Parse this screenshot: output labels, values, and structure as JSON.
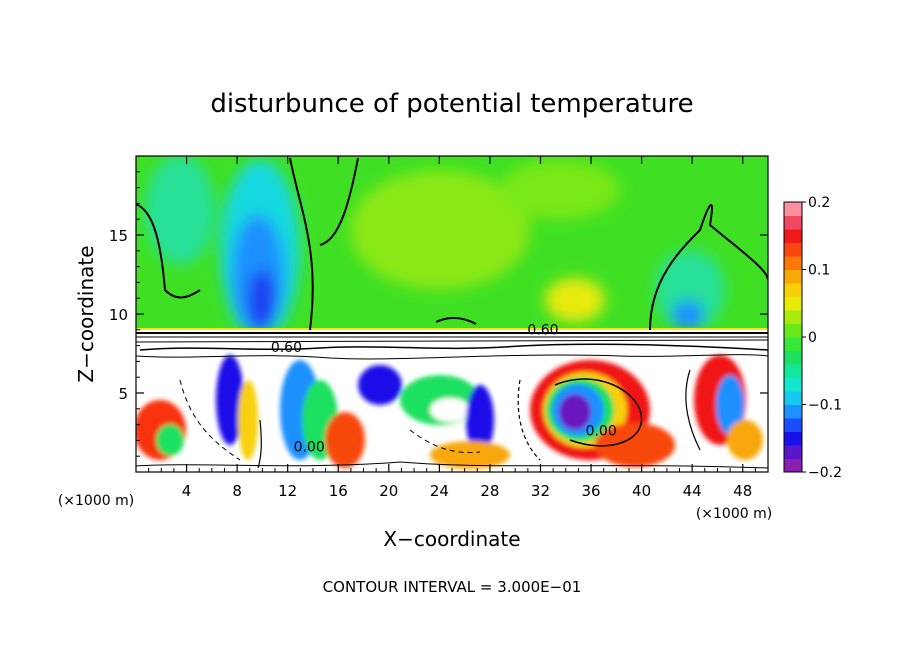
{
  "chart_data": {
    "type": "heatmap",
    "title": "disturbunce of potential temperature",
    "xlabel": "X−coordinate",
    "ylabel": "Z−coordinate",
    "x_unit_left": "(×1000 m)",
    "x_unit_right": "(×1000 m)",
    "footnote": "CONTOUR INTERVAL = 3.000E−01",
    "xlim": [
      0,
      50
    ],
    "ylim": [
      0,
      20
    ],
    "x_ticks": [
      4,
      8,
      12,
      16,
      20,
      24,
      28,
      32,
      36,
      40,
      44,
      48
    ],
    "x_tick_labels": [
      "4",
      "8",
      "12",
      "16",
      "20",
      "24",
      "28",
      "32",
      "36",
      "40",
      "44",
      "48"
    ],
    "y_ticks": [
      5,
      10,
      15
    ],
    "y_tick_labels": [
      "5",
      "10",
      "15"
    ],
    "colorbar": {
      "min": -0.2,
      "max": 0.2,
      "ticks": [
        0.2,
        0.1,
        0,
        -0.1,
        -0.2
      ],
      "tick_labels": [
        "0.2",
        "0.1",
        "0",
        "−0.1",
        "−0.2"
      ],
      "colors": [
        "#8a1fb0",
        "#5a16c8",
        "#1a10e8",
        "#1b4cff",
        "#1e90ff",
        "#18c8f0",
        "#10e8d0",
        "#12e89a",
        "#1ee060",
        "#35e83a",
        "#6ae81a",
        "#a8ea10",
        "#e8ea08",
        "#f8d008",
        "#f8a808",
        "#f87808",
        "#f84810",
        "#f01818",
        "#f04860",
        "#f890a0"
      ]
    },
    "contour_labels": [
      {
        "text": "0.60",
        "x": 32.2,
        "z": 8.7
      },
      {
        "text": "0.60",
        "x": 11.9,
        "z": 7.6
      },
      {
        "text": "0.00",
        "x": 13.7,
        "z": 1.3
      },
      {
        "text": "0.00",
        "x": 36.8,
        "z": 2.3
      }
    ],
    "grid": false
  }
}
